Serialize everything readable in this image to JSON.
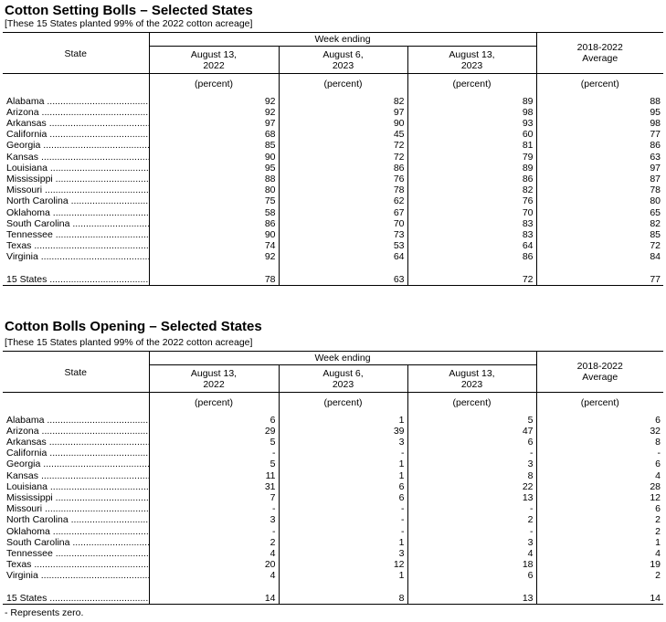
{
  "tables": [
    {
      "title": "Cotton Setting Bolls – Selected States",
      "subtitle": "[These 15 States planted 99% of the 2022 cotton acreage]",
      "header": {
        "state": "State",
        "week_ending": "Week ending",
        "col1": [
          "August 13,",
          "2022"
        ],
        "col2": [
          "August 6,",
          "2023"
        ],
        "col3": [
          "August 13,",
          "2023"
        ],
        "col4": [
          "2018-2022",
          "Average"
        ],
        "unit": "(percent)"
      },
      "rows": [
        [
          "Alabama",
          "92",
          "82",
          "89",
          "88"
        ],
        [
          "Arizona",
          "92",
          "97",
          "98",
          "95"
        ],
        [
          "Arkansas",
          "97",
          "90",
          "93",
          "98"
        ],
        [
          "California",
          "68",
          "45",
          "60",
          "77"
        ],
        [
          "Georgia",
          "85",
          "72",
          "81",
          "86"
        ],
        [
          "Kansas",
          "90",
          "72",
          "79",
          "63"
        ],
        [
          "Louisiana",
          "95",
          "86",
          "89",
          "97"
        ],
        [
          "Mississippi",
          "88",
          "76",
          "86",
          "87"
        ],
        [
          "Missouri",
          "80",
          "78",
          "82",
          "78"
        ],
        [
          "North Carolina",
          "75",
          "62",
          "76",
          "80"
        ],
        [
          "Oklahoma",
          "58",
          "67",
          "70",
          "65"
        ],
        [
          "South Carolina",
          "86",
          "70",
          "83",
          "82"
        ],
        [
          "Tennessee",
          "90",
          "73",
          "83",
          "85"
        ],
        [
          "Texas",
          "74",
          "53",
          "64",
          "72"
        ],
        [
          "Virginia",
          "92",
          "64",
          "86",
          "84"
        ]
      ],
      "total": [
        "15 States",
        "78",
        "63",
        "72",
        "77"
      ]
    },
    {
      "title": "Cotton Bolls Opening – Selected States",
      "subtitle": "[These 15 States planted 99% of the 2022 cotton acreage]",
      "header": {
        "state": "State",
        "week_ending": "Week ending",
        "col1": [
          "August 13,",
          "2022"
        ],
        "col2": [
          "August 6,",
          "2023"
        ],
        "col3": [
          "August 13,",
          "2023"
        ],
        "col4": [
          "2018-2022",
          "Average"
        ],
        "unit": "(percent)"
      },
      "rows": [
        [
          "Alabama",
          "6",
          "1",
          "5",
          "6"
        ],
        [
          "Arizona",
          "29",
          "39",
          "47",
          "32"
        ],
        [
          "Arkansas",
          "5",
          "3",
          "6",
          "8"
        ],
        [
          "California",
          "-",
          "-",
          "-",
          "-"
        ],
        [
          "Georgia",
          "5",
          "1",
          "3",
          "6"
        ],
        [
          "Kansas",
          "11",
          "1",
          "8",
          "4"
        ],
        [
          "Louisiana",
          "31",
          "6",
          "22",
          "28"
        ],
        [
          "Mississippi",
          "7",
          "6",
          "13",
          "12"
        ],
        [
          "Missouri",
          "-",
          "-",
          "-",
          "6"
        ],
        [
          "North Carolina",
          "3",
          "-",
          "2",
          "2"
        ],
        [
          "Oklahoma",
          "-",
          "-",
          "-",
          "2"
        ],
        [
          "South Carolina",
          "2",
          "1",
          "3",
          "1"
        ],
        [
          "Tennessee",
          "4",
          "3",
          "4",
          "4"
        ],
        [
          "Texas",
          "20",
          "12",
          "18",
          "19"
        ],
        [
          "Virginia",
          "4",
          "1",
          "6",
          "2"
        ]
      ],
      "total": [
        "15 States",
        "14",
        "8",
        "13",
        "14"
      ]
    }
  ],
  "footnote": "- Represents zero."
}
